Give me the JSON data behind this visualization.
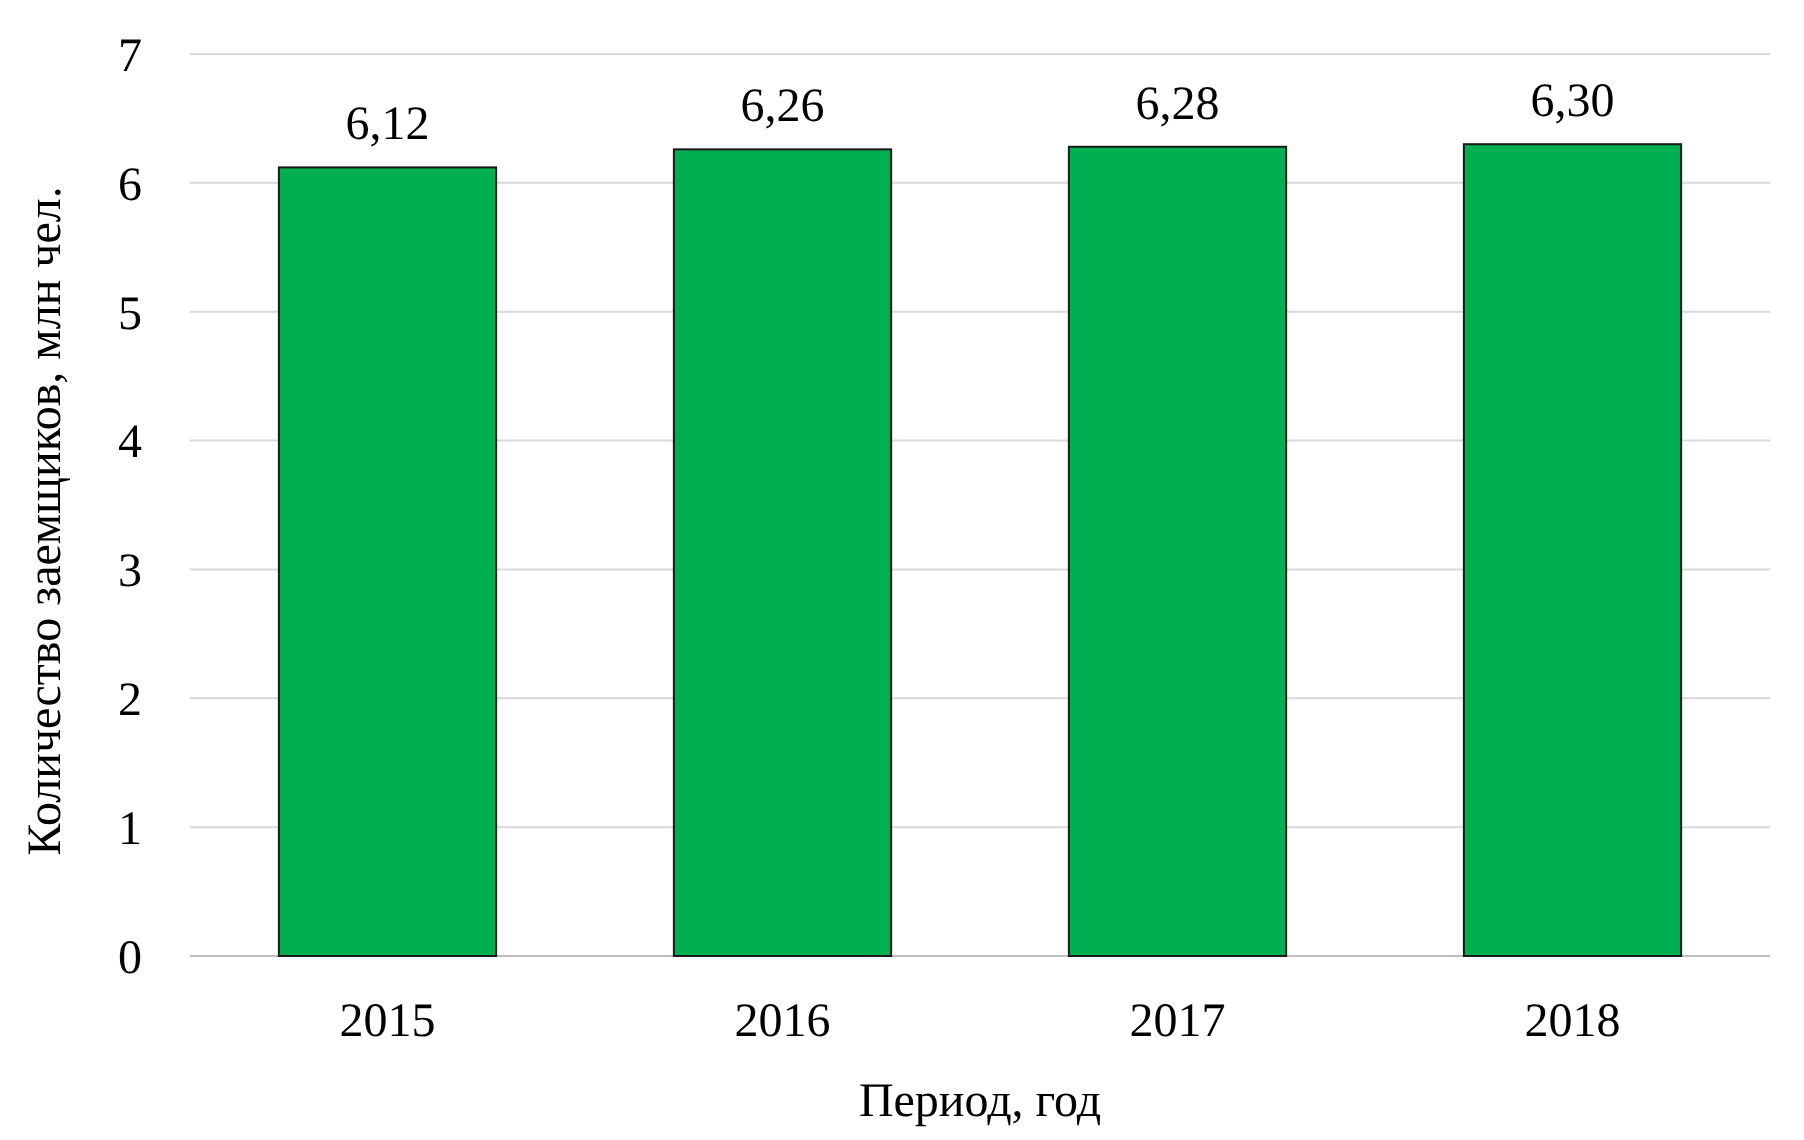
{
  "chart_data": {
    "type": "bar",
    "xlabel": "Период, год",
    "ylabel": "Количество заемщиков, млн чел.",
    "categories": [
      "2015",
      "2016",
      "2017",
      "2018"
    ],
    "values": [
      6.12,
      6.26,
      6.28,
      6.3
    ],
    "value_labels": [
      "6,12",
      "6,26",
      "6,28",
      "6,30"
    ],
    "color": "#00b050",
    "ylim": [
      0,
      7
    ],
    "yticks": [
      0,
      1,
      2,
      3,
      4,
      5,
      6,
      7
    ],
    "grid": "y"
  }
}
